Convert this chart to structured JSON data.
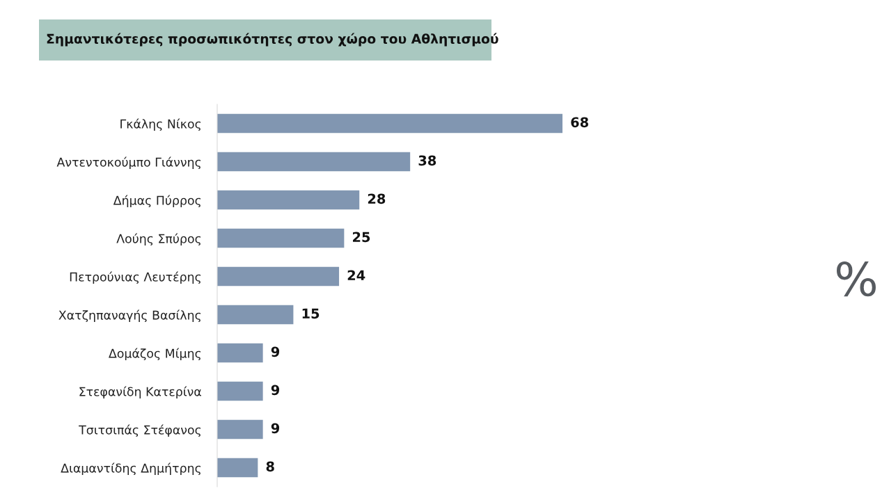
{
  "chart_data": {
    "type": "bar",
    "orientation": "horizontal",
    "title": "Σημαντικότερες προσωπικότητες στον χώρο του Αθλητισμού",
    "categories": [
      "Γκάλης Νίκος",
      "Αντεντοκούμπο Γιάννης",
      "Δήμας Πύρρος",
      "Λούης Σπύρος",
      "Πετρούνιας Λευτέρης",
      "Χατζηπαναγής Βασίλης",
      "Δομάζος Μίμης",
      "Στεφανίδη Κατερίνα",
      "Τσιτσιπάς Στέφανος",
      "Διαμαντίδης Δημήτρης"
    ],
    "values": [
      68,
      38,
      28,
      25,
      24,
      15,
      9,
      9,
      9,
      8
    ],
    "color": "#8196b1",
    "data_labels": true,
    "grid": false,
    "legend": false,
    "annotations": [
      "%"
    ]
  }
}
